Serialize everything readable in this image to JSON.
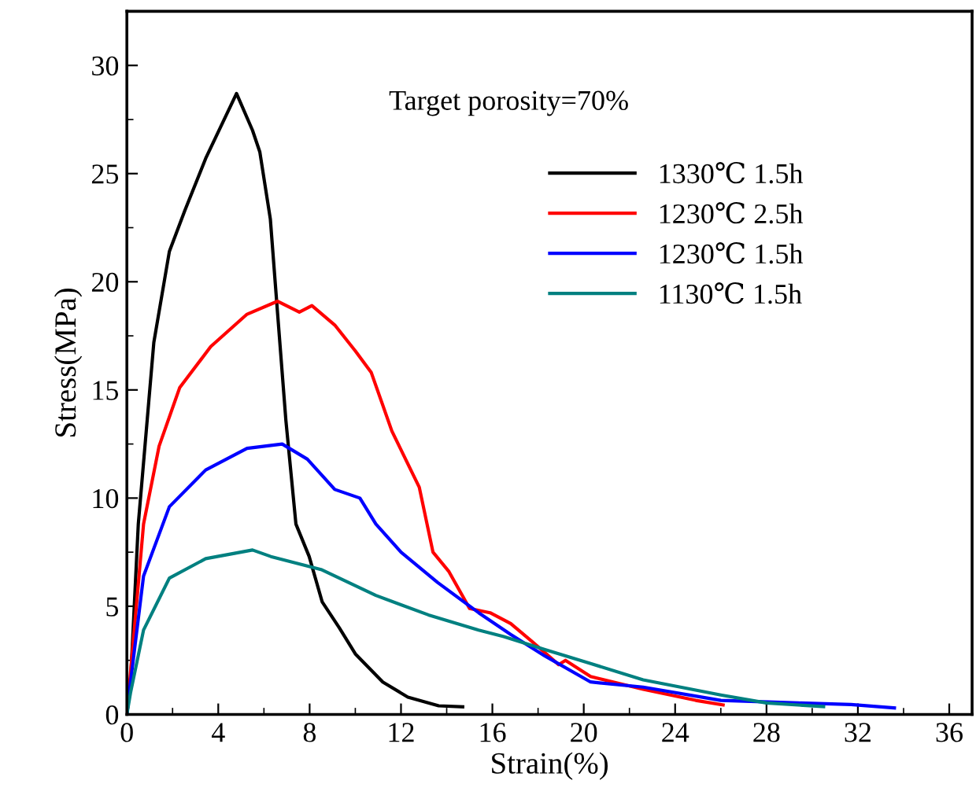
{
  "chart_data": {
    "type": "line",
    "xlabel": "Strain(%)",
    "ylabel": "Stress(MPa)",
    "annotations": [
      "Target porosity=70%"
    ],
    "xlim": [
      0,
      37
    ],
    "xticks": [
      0,
      4,
      8,
      12,
      16,
      20,
      24,
      28,
      32,
      36
    ],
    "ylim": [
      0,
      32.5
    ],
    "yticks": [
      0,
      5,
      10,
      15,
      20,
      25,
      30
    ],
    "grid": false,
    "legend": "right",
    "marker": "none",
    "line_style": "solid",
    "series": [
      {
        "name": "1330℃ 1.5h",
        "color": "#000000",
        "x": [
          0,
          0.16,
          0.5,
          1.18,
          1.86,
          2.54,
          3.45,
          4.8,
          5.5,
          5.82,
          6.28,
          6.6,
          6.96,
          7.4,
          7.98,
          8.55,
          9.3,
          10.0,
          11.2,
          12.3,
          13.65,
          14.7
        ],
        "values": [
          0,
          1.5,
          8.8,
          17.2,
          21.4,
          23.3,
          25.7,
          28.7,
          27.0,
          26.0,
          22.9,
          18.5,
          13.6,
          8.8,
          7.3,
          5.2,
          4.0,
          2.8,
          1.5,
          0.8,
          0.4,
          0.35
        ]
      },
      {
        "name": "1230℃ 2.5h",
        "color": "#ff0000",
        "x": [
          0,
          0.73,
          1.41,
          2.31,
          3.67,
          5.26,
          6.6,
          7.55,
          8.1,
          9.1,
          10.0,
          10.7,
          11.6,
          12.8,
          13.4,
          14.1,
          15.0,
          15.9,
          16.8,
          17.7,
          18.9,
          19.2,
          20.3,
          22.6,
          24.9,
          26.1
        ],
        "values": [
          0,
          8.8,
          12.4,
          15.1,
          17.0,
          18.5,
          19.1,
          18.6,
          18.9,
          18.0,
          16.8,
          15.8,
          13.1,
          10.5,
          7.5,
          6.6,
          4.9,
          4.7,
          4.2,
          3.4,
          2.3,
          2.5,
          1.75,
          1.16,
          0.65,
          0.44
        ]
      },
      {
        "name": "1230℃ 1.5h",
        "color": "#0000ff",
        "x": [
          0,
          0.16,
          0.73,
          1.86,
          3.45,
          5.26,
          6.8,
          7.9,
          9.1,
          10.2,
          10.9,
          12.0,
          13.6,
          15.4,
          16.8,
          18.3,
          20.3,
          22.6,
          26.0,
          29.4,
          31.7,
          33.6
        ],
        "values": [
          0,
          1.5,
          6.4,
          9.6,
          11.3,
          12.3,
          12.5,
          11.8,
          10.4,
          10.0,
          8.8,
          7.5,
          6.1,
          4.7,
          3.7,
          2.7,
          1.5,
          1.26,
          0.65,
          0.53,
          0.46,
          0.3
        ]
      },
      {
        "name": "1130℃ 1.5h",
        "color": "#008080",
        "x": [
          0,
          0.16,
          0.73,
          1.86,
          3.45,
          5.5,
          6.3,
          8.5,
          10.9,
          13.2,
          15.4,
          16.5,
          18.3,
          20.3,
          22.6,
          26.0,
          28.0,
          30.5
        ],
        "values": [
          0,
          1.0,
          3.9,
          6.3,
          7.2,
          7.6,
          7.3,
          6.7,
          5.5,
          4.6,
          3.9,
          3.6,
          3.0,
          2.35,
          1.6,
          0.9,
          0.53,
          0.36
        ]
      }
    ]
  }
}
